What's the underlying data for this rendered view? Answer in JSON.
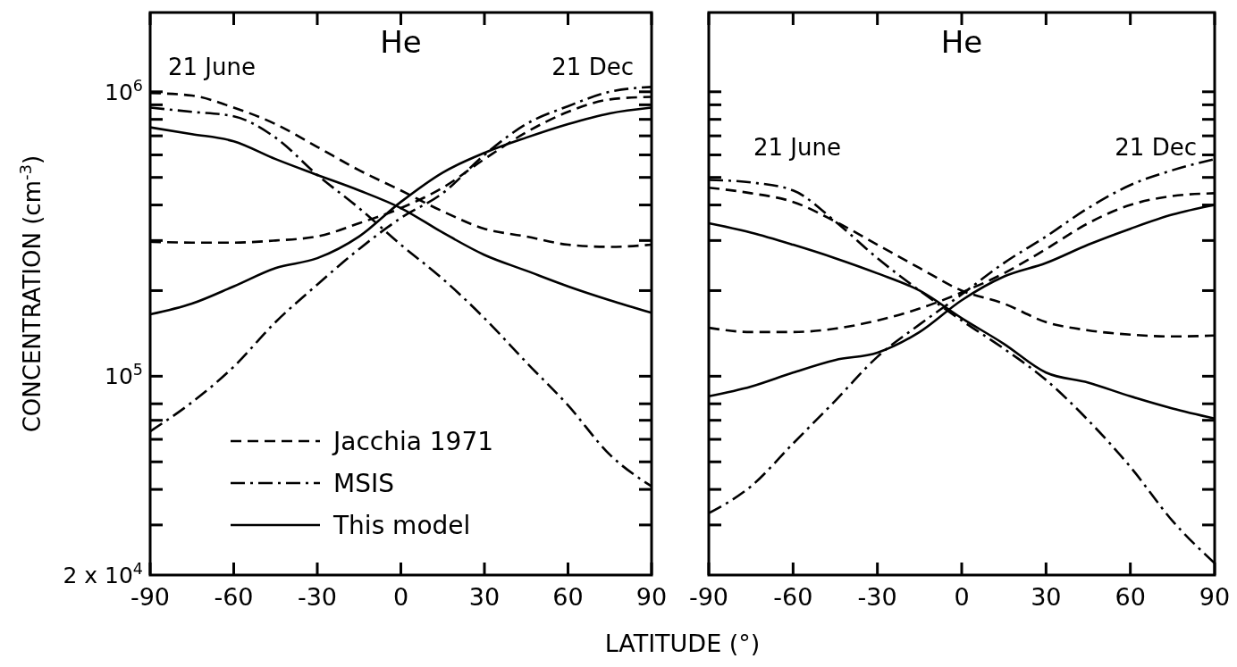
{
  "chart_data": [
    {
      "type": "line",
      "title": "He",
      "ylabel": "CONCENTRATION (cm$^{-3}$)",
      "xlabel": "LATITUDE (°)",
      "log": "y",
      "legend": "bottom left",
      "grid": false,
      "x": [
        -90,
        -75,
        -60,
        -45,
        -30,
        -15,
        0,
        15,
        30,
        45,
        60,
        75,
        90
      ],
      "xlim": [
        -90,
        90
      ],
      "xticks": [
        -90,
        -60,
        -30,
        0,
        30,
        60,
        90
      ],
      "ylim": [
        20000,
        1900000
      ],
      "yticks": [
        {
          "value": 20000,
          "label": "2 x 10$^{4}$"
        },
        {
          "value": 30000,
          "label": null
        },
        {
          "value": 40000,
          "label": null
        },
        {
          "value": 50000,
          "label": null
        },
        {
          "value": 60000,
          "label": null
        },
        {
          "value": 70000,
          "label": null
        },
        {
          "value": 80000,
          "label": null
        },
        {
          "value": 100000,
          "label": "10$^{5}$"
        },
        {
          "value": 200000,
          "label": null
        },
        {
          "value": 300000,
          "label": null
        },
        {
          "value": 400000,
          "label": null
        },
        {
          "value": 500000,
          "label": null
        },
        {
          "value": 600000,
          "label": null
        },
        {
          "value": 700000,
          "label": null
        },
        {
          "value": 800000,
          "label": null
        },
        {
          "value": 900000,
          "label": null
        },
        {
          "value": 1000000,
          "label": "10$^{6}$"
        }
      ],
      "annotations": [
        "21 June",
        "21 Dec"
      ],
      "series": [
        {
          "name": "Jacchia 1971",
          "color": "#000000",
          "line_style": "dashed",
          "values": [
            990000,
            970000,
            880000,
            770000,
            640000,
            530000,
            450000,
            380000,
            330000,
            310000,
            290000,
            285000,
            290000
          ]
        },
        {
          "color": "#000000",
          "line_style": "dashed",
          "values": [
            297000,
            295000,
            295000,
            300000,
            310000,
            345000,
            390000,
            460000,
            580000,
            720000,
            850000,
            940000,
            960000
          ]
        },
        {
          "name": "MSIS",
          "color": "#000000",
          "line_style": "dashdot",
          "values": [
            880000,
            850000,
            820000,
            690000,
            510000,
            390000,
            290000,
            220000,
            160000,
            112000,
            79000,
            53000,
            41000
          ]
        },
        {
          "color": "#000000",
          "line_style": "dashdot",
          "values": [
            64000,
            81000,
            108000,
            155000,
            210000,
            280000,
            360000,
            440000,
            600000,
            770000,
            890000,
            1000000,
            1040000
          ]
        },
        {
          "name": "This model",
          "color": "#000000",
          "line_style": "solid",
          "values": [
            750000,
            710000,
            670000,
            580000,
            510000,
            450000,
            390000,
            320000,
            267000,
            235000,
            207000,
            185000,
            167000
          ]
        },
        {
          "color": "#000000",
          "line_style": "solid",
          "values": [
            165000,
            180000,
            207000,
            240000,
            260000,
            310000,
            410000,
            520000,
            610000,
            690000,
            770000,
            840000,
            880000
          ]
        }
      ]
    },
    {
      "type": "line",
      "title": "He",
      "log": "y",
      "legend": false,
      "grid": false,
      "tick_labels": "x",
      "x": [
        -90,
        -75,
        -60,
        -45,
        -30,
        -15,
        0,
        15,
        30,
        45,
        60,
        75,
        90
      ],
      "xlim": [
        -90,
        90
      ],
      "xticks": [
        -90,
        -60,
        -30,
        0,
        30,
        60,
        90
      ],
      "ylim": [
        20000,
        1900000
      ],
      "yticks": [
        {
          "value": 20000,
          "label": null
        },
        {
          "value": 30000,
          "label": null
        },
        {
          "value": 40000,
          "label": null
        },
        {
          "value": 50000,
          "label": null
        },
        {
          "value": 60000,
          "label": null
        },
        {
          "value": 70000,
          "label": null
        },
        {
          "value": 80000,
          "label": null
        },
        {
          "value": 100000,
          "label": null
        },
        {
          "value": 200000,
          "label": null
        },
        {
          "value": 300000,
          "label": null
        },
        {
          "value": 400000,
          "label": null
        },
        {
          "value": 500000,
          "label": null
        },
        {
          "value": 600000,
          "label": null
        },
        {
          "value": 700000,
          "label": null
        },
        {
          "value": 800000,
          "label": null
        },
        {
          "value": 900000,
          "label": null
        },
        {
          "value": 1000000,
          "label": null
        }
      ],
      "annotations": [
        "21 June",
        "21 Dec"
      ],
      "series": [
        {
          "color": "#000000",
          "line_style": "dashed",
          "values": [
            460000,
            440000,
            410000,
            350000,
            290000,
            240000,
            200000,
            180000,
            155000,
            145000,
            140000,
            138000,
            139000
          ]
        },
        {
          "color": "#000000",
          "line_style": "dashed",
          "values": [
            148000,
            143000,
            143000,
            147000,
            157000,
            173000,
            197000,
            230000,
            280000,
            345000,
            400000,
            430000,
            440000
          ]
        },
        {
          "color": "#000000",
          "line_style": "dashdot",
          "values": [
            490000,
            480000,
            450000,
            350000,
            260000,
            200000,
            157000,
            125000,
            97000,
            70000,
            48000,
            31000,
            22000
          ]
        },
        {
          "color": "#000000",
          "line_style": "dashdot",
          "values": [
            33000,
            41000,
            58000,
            82000,
            117000,
            152000,
            194000,
            250000,
            310000,
            390000,
            470000,
            530000,
            580000
          ]
        },
        {
          "color": "#000000",
          "line_style": "solid",
          "values": [
            345000,
            320000,
            290000,
            260000,
            230000,
            200000,
            160000,
            130000,
            103000,
            95000,
            85000,
            77000,
            71000
          ]
        },
        {
          "color": "#000000",
          "line_style": "solid",
          "values": [
            85000,
            92000,
            103000,
            114000,
            121000,
            143000,
            185000,
            224000,
            250000,
            290000,
            330000,
            370000,
            400000
          ]
        }
      ]
    }
  ]
}
